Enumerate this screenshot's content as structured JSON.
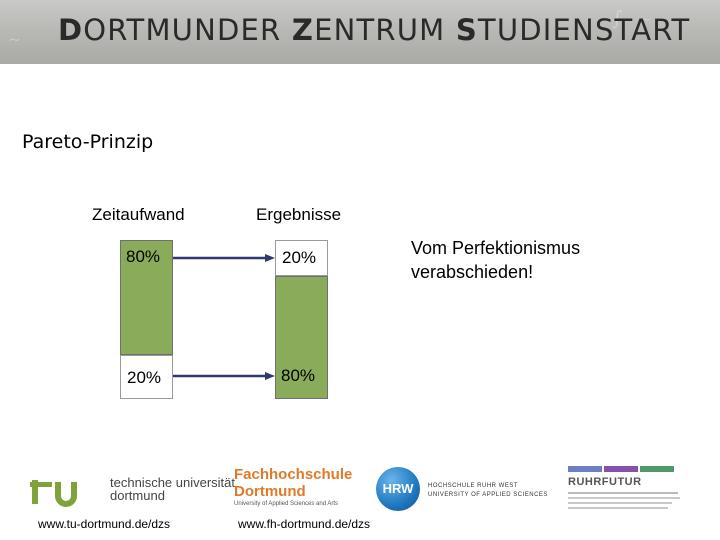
{
  "header": {
    "title_parts": [
      {
        "initial": "D",
        "rest": "ORTMUNDER "
      },
      {
        "initial": "Z",
        "rest": "ENTRUM "
      },
      {
        "initial": "S",
        "rest": "TUDIENSTART"
      }
    ]
  },
  "slide": {
    "subtitle": "Pareto-Prinzip",
    "col_left": "Zeitaufwand",
    "col_right": "Ergebnisse",
    "left_top": "80%",
    "left_bottom": "20%",
    "right_top": "20%",
    "right_bottom": "80%",
    "quote_line1": "Vom Perfektionismus",
    "quote_line2": "verabschieden!"
  },
  "footer": {
    "tu_name_line1": "technische universität",
    "tu_name_line2": "dortmund",
    "fh_line1": "Fachhochschule",
    "fh_line2": "Dortmund",
    "fh_line3": "University of Applied Sciences and Arts",
    "hrw_badge": "HRW",
    "hrw_line1": "HOCHSCHULE RUHR WEST",
    "hrw_line2": "UNIVERSITY OF APPLIED SCIENCES",
    "rf_title": "RUHRFUTUR",
    "url_left": "www.tu-dortmund.de/dzs",
    "url_right": "www.fh-dortmund.de/dzs"
  },
  "colors": {
    "bar_green": "#8aab5a",
    "arrow": "#2f3a6b",
    "tu_green": "#7fa33a",
    "fh_orange": "#e07a2a",
    "hrw_blue": "#1f78c1"
  }
}
